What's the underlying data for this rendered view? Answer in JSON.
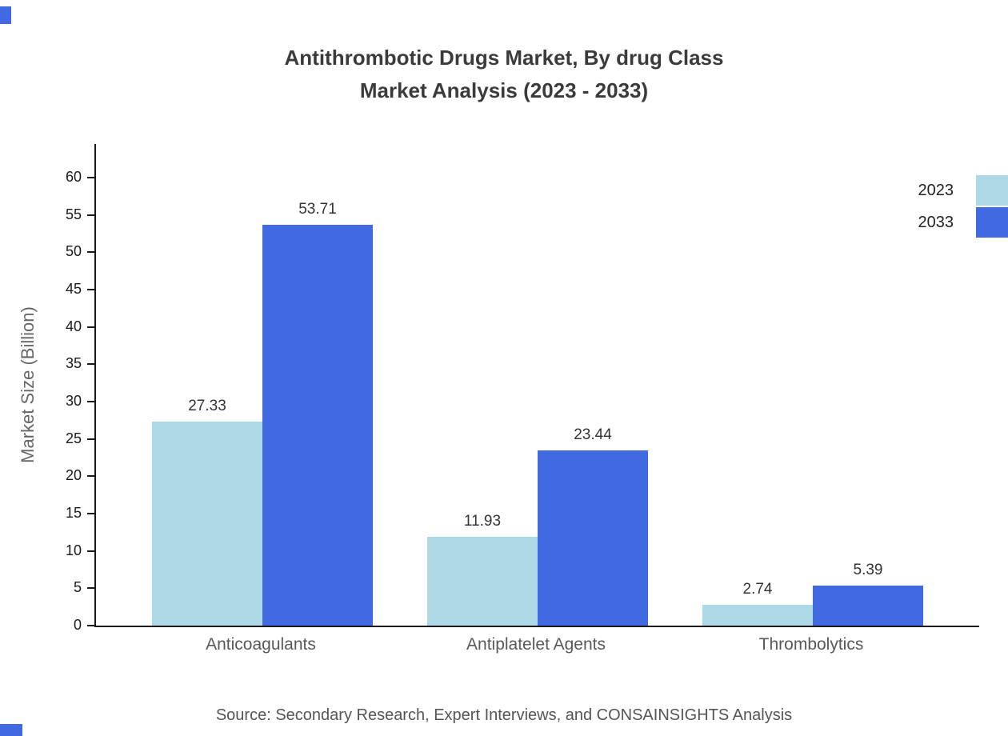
{
  "title": {
    "line1": "Antithrombotic Drugs Market, By drug Class",
    "line2": "Market Analysis (2023 - 2033)"
  },
  "source": "Source: Secondary Research, Expert Interviews, and CONSAINSIGHTS Analysis",
  "colors": {
    "series_2023": "#ADD8E6",
    "series_2033": "#4169E1",
    "axis": "#1a1a1a",
    "title_text": "#3b3b3b",
    "muted_text": "#595959"
  },
  "chart_data": {
    "type": "bar",
    "title": "Antithrombotic Drugs Market, By drug Class Market Analysis (2023 - 2033)",
    "categories": [
      "Anticoagulants",
      "Antiplatelet Agents",
      "Thrombolytics"
    ],
    "series": [
      {
        "name": "2023",
        "color": "#ADD8E6",
        "values": [
          27.33,
          11.93,
          2.74
        ]
      },
      {
        "name": "2033",
        "color": "#4169E1",
        "values": [
          53.71,
          23.44,
          5.39
        ]
      }
    ],
    "xlabel": "",
    "ylabel": "Market Size (Billion)",
    "ylim": [
      0,
      65
    ],
    "yticks": [
      0,
      5,
      10,
      15,
      20,
      25,
      30,
      35,
      40,
      45,
      50,
      55,
      60
    ],
    "grid": false,
    "legend_position": "top-right"
  }
}
